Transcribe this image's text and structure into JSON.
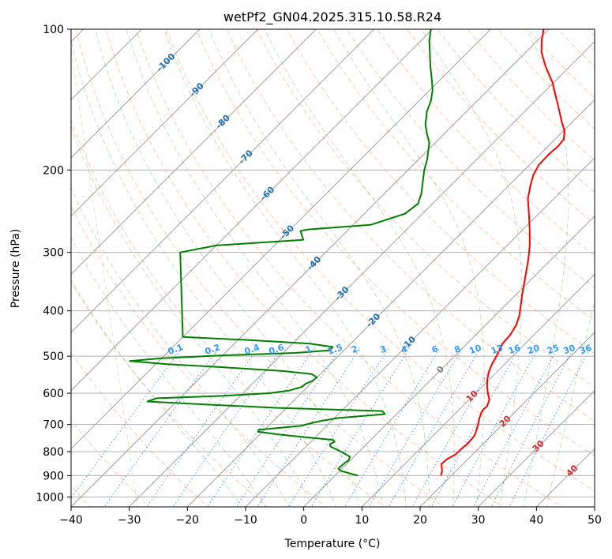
{
  "chart_data": {
    "type": "line",
    "title": "wetPf2_GN04.2025.315.10.58.R24",
    "xlabel": "Temperature (°C)",
    "ylabel": "Pressure (hPa)",
    "xlim": [
      -40,
      50
    ],
    "ylim": [
      1050,
      100
    ],
    "y_scale": "log",
    "skew": true,
    "x_ticks": [
      -40,
      -30,
      -20,
      -10,
      0,
      10,
      20,
      30,
      40,
      50
    ],
    "x_tick_labels": [
      "−40",
      "−30",
      "−20",
      "−10",
      "0",
      "10",
      "20",
      "30",
      "40",
      "50"
    ],
    "y_ticks": [
      100,
      200,
      300,
      400,
      500,
      600,
      700,
      800,
      900,
      1000
    ],
    "y_tick_labels": [
      "100",
      "200",
      "300",
      "400",
      "500",
      "600",
      "700",
      "800",
      "900",
      "1000"
    ],
    "grid": true,
    "isotherm_labels": [
      {
        "label": "-100",
        "value": -100,
        "p": 118
      },
      {
        "label": "-90",
        "value": -90,
        "p": 135
      },
      {
        "label": "-80",
        "value": -80,
        "p": 158
      },
      {
        "label": "-70",
        "value": -70,
        "p": 188
      },
      {
        "label": "-60",
        "value": -60,
        "p": 225
      },
      {
        "label": "-50",
        "value": -50,
        "p": 272
      },
      {
        "label": "-40",
        "value": -40,
        "p": 317
      },
      {
        "label": "-30",
        "value": -30,
        "p": 368
      },
      {
        "label": "-20",
        "value": -20,
        "p": 420
      },
      {
        "label": "-10",
        "value": -10,
        "p": 470
      },
      {
        "label": "0",
        "value": 0,
        "p": 535
      },
      {
        "label": "10",
        "value": 10,
        "p": 610
      },
      {
        "label": "20",
        "value": 20,
        "p": 690
      },
      {
        "label": "30",
        "value": 30,
        "p": 780
      },
      {
        "label": "40",
        "value": 40,
        "p": 880
      }
    ],
    "mixing_ratio_labels": [
      "0.1",
      "0.2",
      "0.4",
      "0.6",
      "1",
      "1.5",
      "2",
      "3",
      "4",
      "6",
      "8",
      "10",
      "13",
      "16",
      "20",
      "25",
      "30",
      "36"
    ],
    "mixing_ratio_values": [
      0.1,
      0.2,
      0.4,
      0.6,
      1,
      1.5,
      2,
      3,
      4,
      6,
      8,
      10,
      13,
      16,
      20,
      25,
      30,
      36
    ],
    "series": [
      {
        "color": "#ff0000",
        "points": [
          {
            "p": 900,
            "t": 18.2
          },
          {
            "p": 880,
            "t": 17.6
          },
          {
            "p": 850,
            "t": 16.3
          },
          {
            "p": 830,
            "t": 16.4
          },
          {
            "p": 810,
            "t": 17.1
          },
          {
            "p": 790,
            "t": 17.1
          },
          {
            "p": 770,
            "t": 17.3
          },
          {
            "p": 740,
            "t": 17.1
          },
          {
            "p": 720,
            "t": 16.5
          },
          {
            "p": 700,
            "t": 15.8
          },
          {
            "p": 680,
            "t": 15.0
          },
          {
            "p": 660,
            "t": 14.3
          },
          {
            "p": 650,
            "t": 14.1
          },
          {
            "p": 640,
            "t": 14.2
          },
          {
            "p": 620,
            "t": 13.5
          },
          {
            "p": 600,
            "t": 12.1
          },
          {
            "p": 580,
            "t": 10.8
          },
          {
            "p": 560,
            "t": 9.6
          },
          {
            "p": 540,
            "t": 8.6
          },
          {
            "p": 520,
            "t": 7.8
          },
          {
            "p": 500,
            "t": 7.2
          },
          {
            "p": 480,
            "t": 6.5
          },
          {
            "p": 470,
            "t": 6.1
          },
          {
            "p": 450,
            "t": 5.9
          },
          {
            "p": 430,
            "t": 5.3
          },
          {
            "p": 410,
            "t": 4.2
          },
          {
            "p": 390,
            "t": 2.7
          },
          {
            "p": 370,
            "t": 1.1
          },
          {
            "p": 350,
            "t": -0.5
          },
          {
            "p": 330,
            "t": -2.2
          },
          {
            "p": 310,
            "t": -4.0
          },
          {
            "p": 290,
            "t": -6.1
          },
          {
            "p": 270,
            "t": -8.6
          },
          {
            "p": 250,
            "t": -11.4
          },
          {
            "p": 230,
            "t": -14.5
          },
          {
            "p": 215,
            "t": -16.4
          },
          {
            "p": 205,
            "t": -17.6
          },
          {
            "p": 195,
            "t": -18.4
          },
          {
            "p": 185,
            "t": -18.5
          },
          {
            "p": 178,
            "t": -18.3
          },
          {
            "p": 172,
            "t": -18.5
          },
          {
            "p": 165,
            "t": -19.8
          },
          {
            "p": 158,
            "t": -21.8
          },
          {
            "p": 150,
            "t": -24.0
          },
          {
            "p": 140,
            "t": -27.0
          },
          {
            "p": 130,
            "t": -30.2
          },
          {
            "p": 120,
            "t": -34.2
          },
          {
            "p": 112,
            "t": -37.3
          },
          {
            "p": 106,
            "t": -39.2
          },
          {
            "p": 100,
            "t": -40.9
          }
        ]
      },
      {
        "color": "#008000",
        "points": [
          {
            "p": 900,
            "t": 3.9
          },
          {
            "p": 880,
            "t": 0.3
          },
          {
            "p": 870,
            "t": -0.6
          },
          {
            "p": 860,
            "t": -0.6
          },
          {
            "p": 845,
            "t": -0.5
          },
          {
            "p": 835,
            "t": -0.3
          },
          {
            "p": 820,
            "t": -0.7
          },
          {
            "p": 800,
            "t": -3.1
          },
          {
            "p": 780,
            "t": -5.8
          },
          {
            "p": 770,
            "t": -6.3
          },
          {
            "p": 762,
            "t": -5.9
          },
          {
            "p": 755,
            "t": -6.5
          },
          {
            "p": 745,
            "t": -11.8
          },
          {
            "p": 735,
            "t": -16.8
          },
          {
            "p": 725,
            "t": -20.8
          },
          {
            "p": 718,
            "t": -21.0
          },
          {
            "p": 705,
            "t": -14.5
          },
          {
            "p": 690,
            "t": -12.3
          },
          {
            "p": 678,
            "t": -9.5
          },
          {
            "p": 665,
            "t": -2.0
          },
          {
            "p": 655,
            "t": -3.0
          },
          {
            "p": 645,
            "t": -21.5
          },
          {
            "p": 632,
            "t": -37.0
          },
          {
            "p": 625,
            "t": -45.0
          },
          {
            "p": 615,
            "t": -44.0
          },
          {
            "p": 608,
            "t": -33.0
          },
          {
            "p": 600,
            "t": -25.5
          },
          {
            "p": 592,
            "t": -22.5
          },
          {
            "p": 582,
            "t": -21.0
          },
          {
            "p": 572,
            "t": -20.8
          },
          {
            "p": 565,
            "t": -20.2
          },
          {
            "p": 555,
            "t": -20.0
          },
          {
            "p": 546,
            "t": -21.5
          },
          {
            "p": 538,
            "t": -27.0
          },
          {
            "p": 528,
            "t": -38.0
          },
          {
            "p": 520,
            "t": -48.0
          },
          {
            "p": 512,
            "t": -55.0
          },
          {
            "p": 505,
            "t": -50.0
          },
          {
            "p": 498,
            "t": -40.0
          },
          {
            "p": 492,
            "t": -28.0
          },
          {
            "p": 486,
            "t": -22.5
          },
          {
            "p": 478,
            "t": -22.5
          },
          {
            "p": 470,
            "t": -27.0
          },
          {
            "p": 462,
            "t": -38.0
          },
          {
            "p": 455,
            "t": -50.0
          },
          {
            "p": 300,
            "t": -65.0
          },
          {
            "p": 290,
            "t": -60.0
          },
          {
            "p": 282,
            "t": -46.0
          },
          {
            "p": 270,
            "t": -48.0
          },
          {
            "p": 268,
            "t": -47.0
          },
          {
            "p": 262,
            "t": -37.0
          },
          {
            "p": 248,
            "t": -33.0
          },
          {
            "p": 236,
            "t": -32.5
          },
          {
            "p": 225,
            "t": -33.6
          },
          {
            "p": 215,
            "t": -35.0
          },
          {
            "p": 200,
            "t": -37.2
          },
          {
            "p": 190,
            "t": -38.5
          },
          {
            "p": 182,
            "t": -39.8
          },
          {
            "p": 175,
            "t": -41.0
          },
          {
            "p": 168,
            "t": -42.8
          },
          {
            "p": 160,
            "t": -44.8
          },
          {
            "p": 150,
            "t": -46.8
          },
          {
            "p": 142,
            "t": -48.0
          },
          {
            "p": 135,
            "t": -49.5
          },
          {
            "p": 128,
            "t": -51.5
          },
          {
            "p": 120,
            "t": -54.0
          },
          {
            "p": 112,
            "t": -56.5
          },
          {
            "p": 106,
            "t": -58.5
          },
          {
            "p": 100,
            "t": -60.3
          }
        ]
      }
    ]
  }
}
